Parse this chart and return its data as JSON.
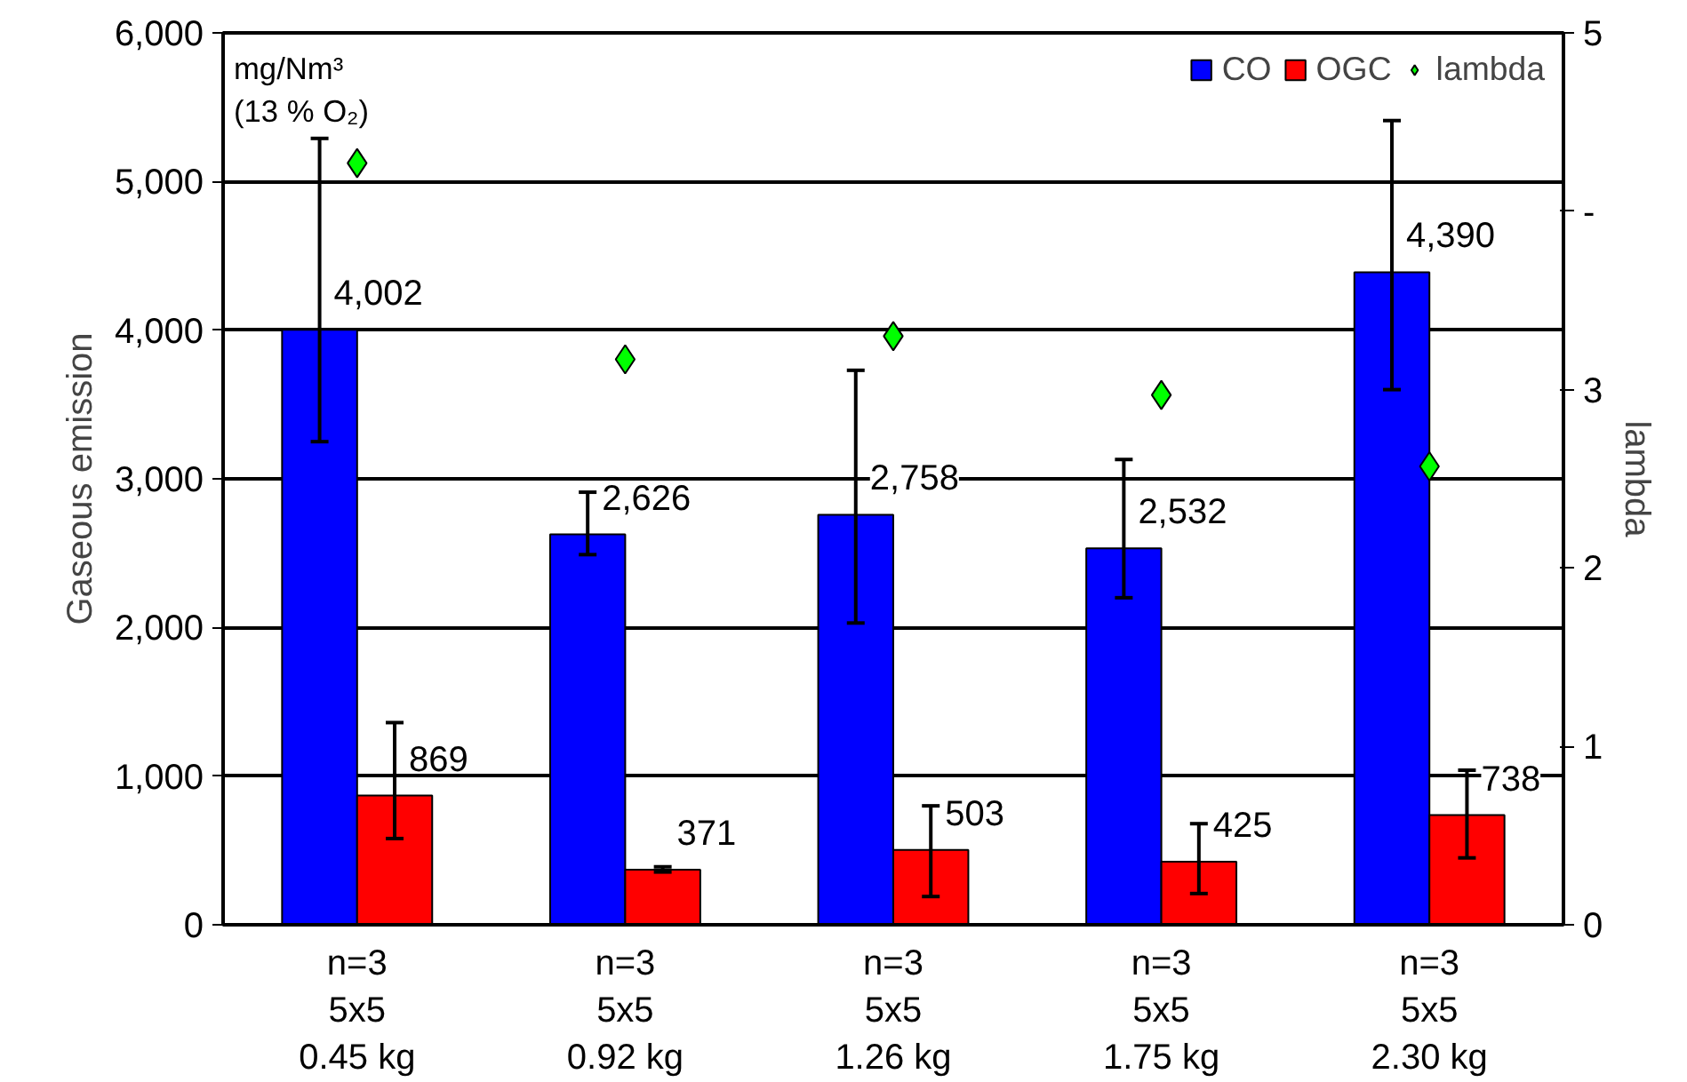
{
  "chart_data": {
    "type": "bar",
    "ylabel": "Gaseous emission",
    "y2label": "lambda",
    "categories": [
      "n=3\n5x5\n0.45 kg",
      "n=3\n5x5\n0.92 kg",
      "n=3\n5x5\n1.26 kg",
      "n=3\n5x5\n1.75 kg",
      "n=3\n5x5\n2.30 kg"
    ],
    "series": [
      {
        "name": "CO",
        "color": "#0000ff",
        "values": [
          4002,
          2626,
          2758,
          2532,
          4390
        ],
        "value_labels": [
          "4,002",
          "2,626",
          "2,758",
          "2,532",
          "4,390"
        ],
        "errors": [
          [
            3250,
            5290
          ],
          [
            2490,
            2910
          ],
          [
            2030,
            3730
          ],
          [
            2200,
            3130
          ],
          [
            3600,
            5410
          ]
        ]
      },
      {
        "name": "OGC",
        "color": "#ff0000",
        "values": [
          869,
          371,
          503,
          425,
          738
        ],
        "value_labels": [
          "869",
          "371",
          "503",
          "425",
          "738"
        ],
        "errors": [
          [
            580,
            1360
          ],
          [
            355,
            390
          ],
          [
            190,
            800
          ],
          [
            210,
            680
          ],
          [
            450,
            1040
          ]
        ]
      },
      {
        "name": "lambda",
        "type": "scatter",
        "axis": "y2",
        "marker": "diamond",
        "color": "#00ff00",
        "values": [
          4.27,
          3.17,
          3.3,
          2.97,
          2.57
        ]
      }
    ],
    "ylim": [
      0,
      6000
    ],
    "yticks": [
      0,
      {
        "value": 1000,
        "label": "1,000"
      },
      {
        "value": 2000,
        "label": "2,000"
      },
      {
        "value": 3000,
        "label": "3,000"
      },
      {
        "value": 4000,
        "label": "4,000"
      },
      {
        "value": 5000,
        "label": "5,000"
      },
      {
        "value": 6000,
        "label": "6,000"
      }
    ],
    "y2lim": [
      0,
      5
    ],
    "y2ticks": [
      0,
      1,
      2,
      3,
      {
        "value": 4,
        "label": "-"
      },
      5
    ],
    "grid": "y",
    "legend": "top right",
    "annotations": [
      "mg/Nm³\n(13 % O₂)"
    ]
  }
}
